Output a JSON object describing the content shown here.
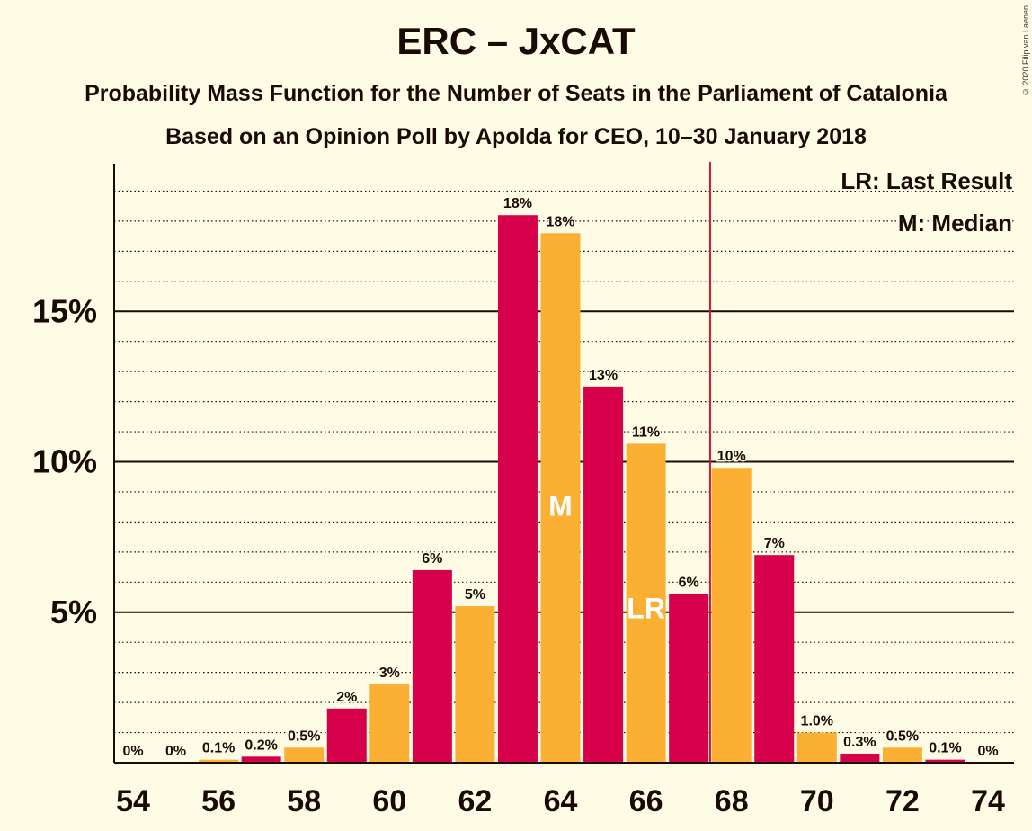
{
  "title": "ERC – JxCAT",
  "subtitle": "Probability Mass Function for the Number of Seats in the Parliament of Catalonia",
  "subtitle2": "Based on an Opinion Poll by Apolda for CEO, 10–30 January 2018",
  "copyright": "© 2020 Filip van Laenen",
  "legend": {
    "last_result": "LR: Last Result",
    "median": "M: Median"
  },
  "colors": {
    "primary": "#D7004B",
    "secondary": "#FBB034",
    "background": "#FFFCE6",
    "marker_line": "#C81C2C"
  },
  "chart_data": {
    "type": "bar",
    "xlabel": "",
    "ylabel": "",
    "x": [
      54,
      55,
      56,
      57,
      58,
      59,
      60,
      61,
      62,
      63,
      64,
      65,
      66,
      67,
      68,
      69,
      70,
      71,
      72,
      73,
      74
    ],
    "values": [
      0,
      0,
      0.1,
      0.2,
      0.5,
      1.8,
      2.6,
      6.4,
      5.2,
      18.2,
      17.6,
      12.5,
      10.6,
      5.6,
      9.8,
      6.9,
      1.0,
      0.3,
      0.5,
      0.1,
      0
    ],
    "data_labels": [
      "0%",
      "0%",
      "0.1%",
      "0.2%",
      "0.5%",
      "2%",
      "3%",
      "6%",
      "5%",
      "18%",
      "18%",
      "13%",
      "11%",
      "6%",
      "10%",
      "7%",
      "1.0%",
      "0.3%",
      "0.5%",
      "0.1%",
      "0%"
    ],
    "x_ticks": [
      "54",
      "56",
      "58",
      "60",
      "62",
      "64",
      "66",
      "68",
      "70",
      "72",
      "74"
    ],
    "y_ticks": [
      {
        "value": 5,
        "label": "5%"
      },
      {
        "value": 10,
        "label": "10%"
      },
      {
        "value": 15,
        "label": "15%"
      }
    ],
    "ylim": [
      0,
      20
    ],
    "grid": "dotted minor every 1%, solid major at 5%, 10%, 15%",
    "median_seat": 64,
    "median_label": "M",
    "last_result_seat": 66,
    "last_result_label": "LR",
    "majority_threshold": 67.5,
    "legend_position": "top-right"
  }
}
